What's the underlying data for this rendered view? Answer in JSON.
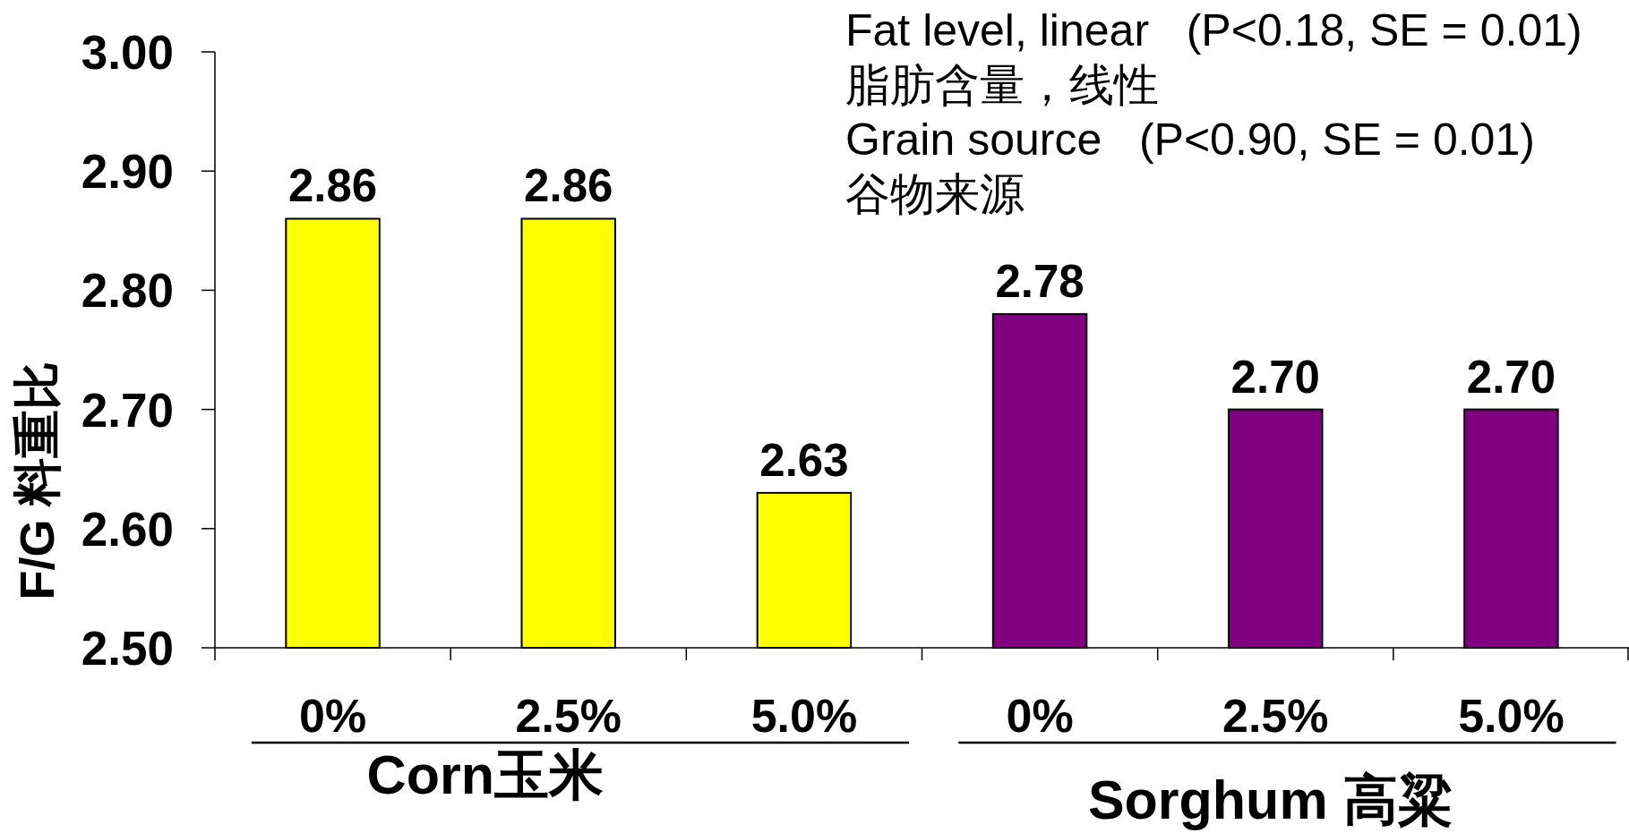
{
  "chart_data": {
    "type": "bar",
    "ylabel": "F/G 料重比",
    "categories": [
      "0%",
      "2.5%",
      "5.0%",
      "0%",
      "2.5%",
      "5.0%"
    ],
    "series": [
      {
        "name": "Corn玉米",
        "color": "#ffff00",
        "values": [
          2.86,
          2.86,
          2.63,
          null,
          null,
          null
        ],
        "value_labels": [
          "2.86",
          "2.86",
          "2.63",
          null,
          null,
          null
        ]
      },
      {
        "name": "Sorghum 高粱",
        "color": "#800080",
        "values": [
          null,
          null,
          null,
          2.78,
          2.7,
          2.7
        ],
        "value_labels": [
          null,
          null,
          null,
          "2.78",
          "2.70",
          "2.70"
        ]
      }
    ],
    "ylim": [
      2.5,
      3.0
    ],
    "yticks": [
      {
        "value": 2.5,
        "label": "2.50"
      },
      {
        "value": 2.6,
        "label": "2.60"
      },
      {
        "value": 2.7,
        "label": "2.70"
      },
      {
        "value": 2.8,
        "label": "2.80"
      },
      {
        "value": 2.9,
        "label": "2.90"
      },
      {
        "value": 3.0,
        "label": "3.00"
      }
    ],
    "annotations": [
      "Fat level, linear   (P<0.18, SE = 0.01)",
      "脂肪含量，线性",
      "Grain source   (P<0.90, SE = 0.01)",
      "谷物来源"
    ]
  }
}
